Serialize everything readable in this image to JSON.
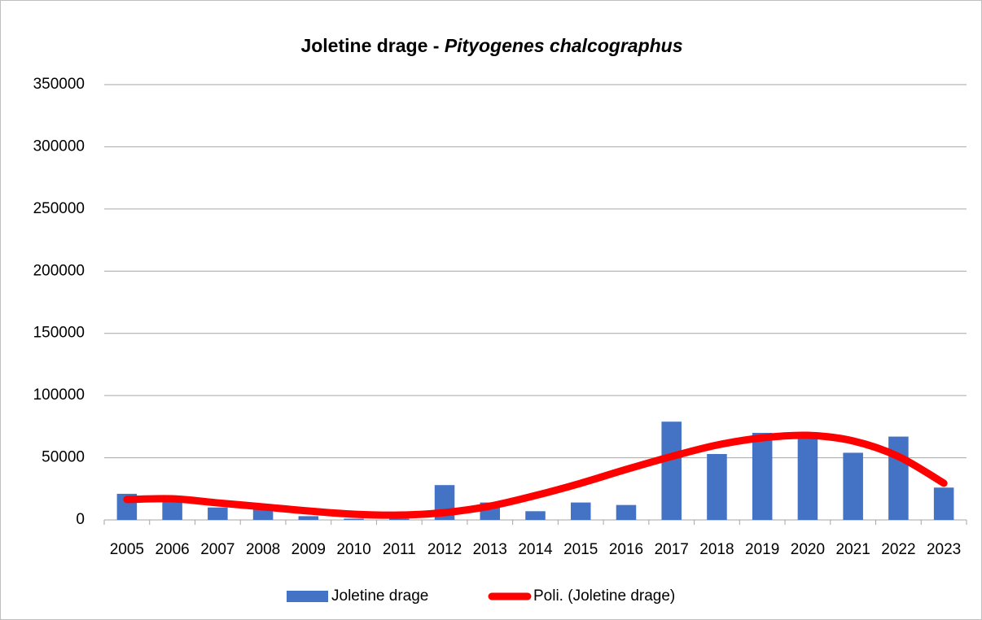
{
  "chart_data": {
    "type": "bar",
    "title": "Joletine drage -",
    "title_species": "Pityogenes chalcographus",
    "categories": [
      "2005",
      "2006",
      "2007",
      "2008",
      "2009",
      "2010",
      "2011",
      "2012",
      "2013",
      "2014",
      "2015",
      "2016",
      "2017",
      "2018",
      "2019",
      "2020",
      "2021",
      "2022",
      "2023"
    ],
    "series": [
      {
        "name": "Joletine drage",
        "type": "bar",
        "color": "#4472c4",
        "values": [
          21000,
          16000,
          10000,
          9000,
          3000,
          1000,
          1000,
          28000,
          14000,
          7000,
          14000,
          12000,
          79000,
          53000,
          70000,
          67000,
          54000,
          67000,
          26000
        ]
      },
      {
        "name": "Poli. (Joletine drage)",
        "type": "line",
        "color": "#ff0000",
        "values": [
          16400,
          17000,
          13700,
          10500,
          7200,
          4600,
          3900,
          5900,
          11100,
          19600,
          29500,
          40600,
          51000,
          60200,
          66000,
          68000,
          63500,
          51000,
          29500
        ]
      }
    ],
    "ylim": [
      0,
      350000
    ],
    "yticks": [
      0,
      50000,
      100000,
      150000,
      200000,
      250000,
      300000,
      350000
    ],
    "grid": true,
    "legend": "bottom"
  }
}
